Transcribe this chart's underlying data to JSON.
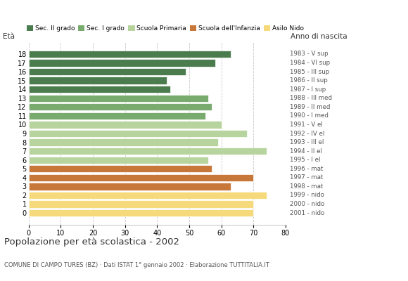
{
  "ages": [
    18,
    17,
    16,
    15,
    14,
    13,
    12,
    11,
    10,
    9,
    8,
    7,
    6,
    5,
    4,
    3,
    2,
    1,
    0
  ],
  "values": [
    63,
    58,
    49,
    43,
    44,
    56,
    57,
    55,
    60,
    68,
    59,
    74,
    56,
    57,
    70,
    63,
    74,
    70,
    70
  ],
  "right_labels": [
    "1983 - V sup",
    "1984 - VI sup",
    "1985 - III sup",
    "1986 - II sup",
    "1987 - I sup",
    "1988 - III med",
    "1989 - II med",
    "1990 - I med",
    "1991 - V el",
    "1992 - IV el",
    "1993 - III el",
    "1994 - II el",
    "1995 - I el",
    "1996 - mat",
    "1997 - mat",
    "1998 - mat",
    "1999 - nido",
    "2000 - nido",
    "2001 - nido"
  ],
  "bar_colors": [
    "#4a7c4e",
    "#4a7c4e",
    "#4a7c4e",
    "#4a7c4e",
    "#4a7c4e",
    "#7aab6e",
    "#7aab6e",
    "#7aab6e",
    "#b8d49e",
    "#b8d49e",
    "#b8d49e",
    "#b8d49e",
    "#b8d49e",
    "#c8773a",
    "#c8773a",
    "#c8773a",
    "#f5d97a",
    "#f5d97a",
    "#f5d97a"
  ],
  "legend_labels": [
    "Sec. II grado",
    "Sec. I grado",
    "Scuola Primaria",
    "Scuola dell'Infanzia",
    "Asilo Nido"
  ],
  "legend_colors": [
    "#4a7c4e",
    "#7aab6e",
    "#b8d49e",
    "#c8773a",
    "#f5d97a"
  ],
  "title": "Popolazione per età scolastica - 2002",
  "subtitle": "COMUNE DI CAMPO TURES (BZ) · Dati ISTAT 1° gennaio 2002 · Elaborazione TUTTITALIA.IT",
  "label_eta": "Età",
  "label_anno": "Anno di nascita",
  "xlim": [
    0,
    80
  ],
  "xticks": [
    0,
    10,
    20,
    30,
    40,
    50,
    60,
    70,
    80
  ],
  "background_color": "#ffffff",
  "grid_color": "#bbbbbb"
}
